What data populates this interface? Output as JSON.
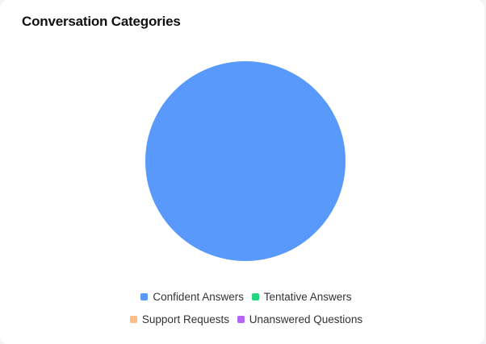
{
  "card": {
    "title": "Conversation Categories"
  },
  "chart_data": {
    "type": "pie",
    "title": "Conversation Categories",
    "categories": [
      "Confident Answers",
      "Tentative Answers",
      "Support Requests",
      "Unanswered Questions"
    ],
    "values": [
      100,
      0,
      0,
      0
    ],
    "colors": [
      "#5899fb",
      "#22d67f",
      "#fdbd85",
      "#b366f5"
    ],
    "legend_position": "bottom"
  },
  "legend": {
    "items": [
      {
        "label": "Confident Answers",
        "color": "#5899fb"
      },
      {
        "label": "Tentative Answers",
        "color": "#22d67f"
      },
      {
        "label": "Support Requests",
        "color": "#fdbd85"
      },
      {
        "label": "Unanswered Questions",
        "color": "#b366f5"
      }
    ]
  }
}
